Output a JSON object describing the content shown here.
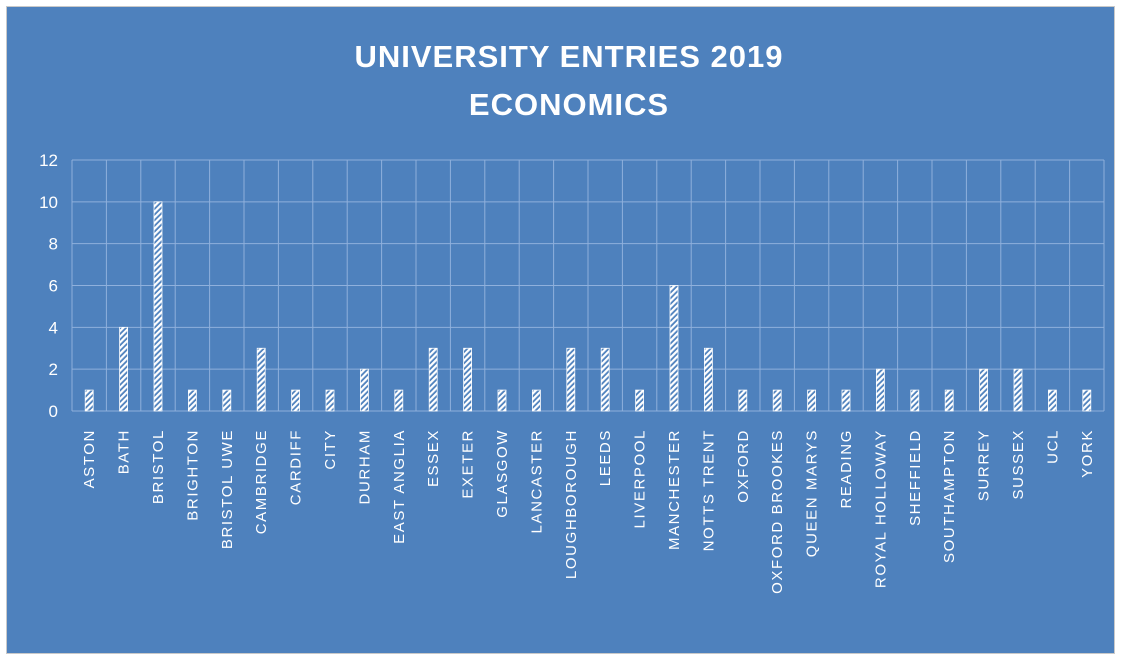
{
  "chart_data": {
    "type": "bar",
    "title": [
      "UNIVERSITY ENTRIES 2019",
      "ECONOMICS"
    ],
    "categories": [
      "ASTON",
      "BATH",
      "BRISTOL",
      "BRIGHTON",
      "BRISTOL UWE",
      "CAMBRIDGE",
      "CARDIFF",
      "CITY",
      "DURHAM",
      "EAST ANGLIA",
      "ESSEX",
      "EXETER",
      "GLASGOW",
      "LANCASTER",
      "LOUGHBOROUGH",
      "LEEDS",
      "LIVERPOOL",
      "MANCHESTER",
      "NOTTS TRENT",
      "OXFORD",
      "OXFORD BROOKES",
      "QUEEN MARYS",
      "READING",
      "ROYAL HOLLOWAY",
      "SHEFFIELD",
      "SOUTHAMPTON",
      "SURREY",
      "SUSSEX",
      "UCL",
      "YORK"
    ],
    "values": [
      1,
      4,
      10,
      1,
      1,
      3,
      1,
      1,
      2,
      1,
      3,
      3,
      1,
      1,
      3,
      3,
      1,
      6,
      3,
      1,
      1,
      1,
      1,
      2,
      1,
      1,
      2,
      2,
      1,
      1
    ],
    "ylim": [
      0,
      12
    ],
    "yticks": [
      0,
      2,
      4,
      6,
      8,
      10,
      12
    ],
    "grid": true,
    "colors": {
      "background": "#4e81bd",
      "bar_fill": "#ffffff",
      "grid": "#8fb0dc",
      "text": "#ffffff"
    }
  }
}
